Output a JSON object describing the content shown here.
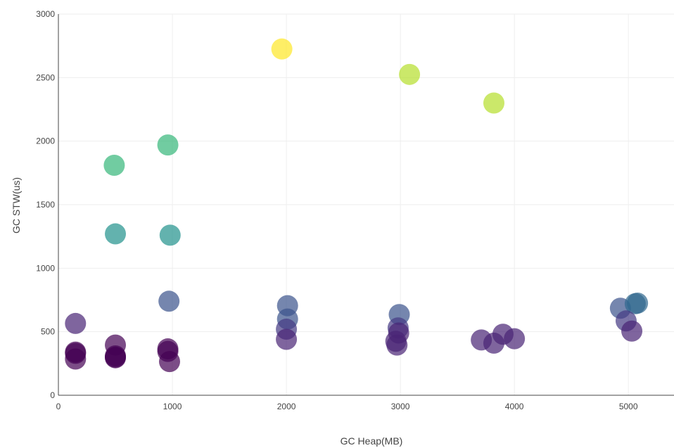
{
  "chart_data": {
    "type": "scatter",
    "xlabel": "GC Heap(MB)",
    "ylabel": "GC STW(us)",
    "xlim": [
      0,
      5400
    ],
    "ylim": [
      0,
      3000
    ],
    "x_ticks": [
      0,
      1000,
      2000,
      3000,
      4000,
      5000
    ],
    "y_ticks": [
      0,
      500,
      1000,
      1500,
      2000,
      2500,
      3000
    ],
    "grid": true,
    "legend": "none",
    "colorscale": "viridis",
    "points": [
      {
        "x": 150,
        "y": 565,
        "color": "#482475"
      },
      {
        "x": 150,
        "y": 340,
        "color": "#440154"
      },
      {
        "x": 150,
        "y": 330,
        "color": "#440154"
      },
      {
        "x": 150,
        "y": 285,
        "color": "#440154"
      },
      {
        "x": 490,
        "y": 1810,
        "color": "#35b779"
      },
      {
        "x": 500,
        "y": 1270,
        "color": "#21918c"
      },
      {
        "x": 500,
        "y": 395,
        "color": "#440154"
      },
      {
        "x": 500,
        "y": 310,
        "color": "#440154"
      },
      {
        "x": 500,
        "y": 300,
        "color": "#440154"
      },
      {
        "x": 500,
        "y": 295,
        "color": "#440154"
      },
      {
        "x": 960,
        "y": 1970,
        "color": "#35b779"
      },
      {
        "x": 980,
        "y": 1260,
        "color": "#21918c"
      },
      {
        "x": 970,
        "y": 740,
        "color": "#3b528b"
      },
      {
        "x": 960,
        "y": 365,
        "color": "#440154"
      },
      {
        "x": 960,
        "y": 345,
        "color": "#440154"
      },
      {
        "x": 975,
        "y": 265,
        "color": "#440154"
      },
      {
        "x": 1960,
        "y": 2725,
        "color": "#fde725"
      },
      {
        "x": 2010,
        "y": 705,
        "color": "#3b528b"
      },
      {
        "x": 2010,
        "y": 600,
        "color": "#3b528b"
      },
      {
        "x": 2000,
        "y": 520,
        "color": "#443983"
      },
      {
        "x": 2000,
        "y": 440,
        "color": "#482475"
      },
      {
        "x": 3080,
        "y": 2525,
        "color": "#b5de2b"
      },
      {
        "x": 2990,
        "y": 635,
        "color": "#3b528b"
      },
      {
        "x": 2980,
        "y": 530,
        "color": "#443983"
      },
      {
        "x": 2985,
        "y": 490,
        "color": "#482475"
      },
      {
        "x": 2960,
        "y": 425,
        "color": "#482475"
      },
      {
        "x": 2970,
        "y": 395,
        "color": "#482475"
      },
      {
        "x": 3820,
        "y": 2300,
        "color": "#b5de2b"
      },
      {
        "x": 3710,
        "y": 435,
        "color": "#482475"
      },
      {
        "x": 3820,
        "y": 410,
        "color": "#482475"
      },
      {
        "x": 3900,
        "y": 480,
        "color": "#482475"
      },
      {
        "x": 4000,
        "y": 445,
        "color": "#482475"
      },
      {
        "x": 4930,
        "y": 685,
        "color": "#3b528b"
      },
      {
        "x": 5060,
        "y": 720,
        "color": "#31688e"
      },
      {
        "x": 5080,
        "y": 725,
        "color": "#31688e"
      },
      {
        "x": 4980,
        "y": 585,
        "color": "#443983"
      },
      {
        "x": 5030,
        "y": 505,
        "color": "#482475"
      }
    ]
  }
}
